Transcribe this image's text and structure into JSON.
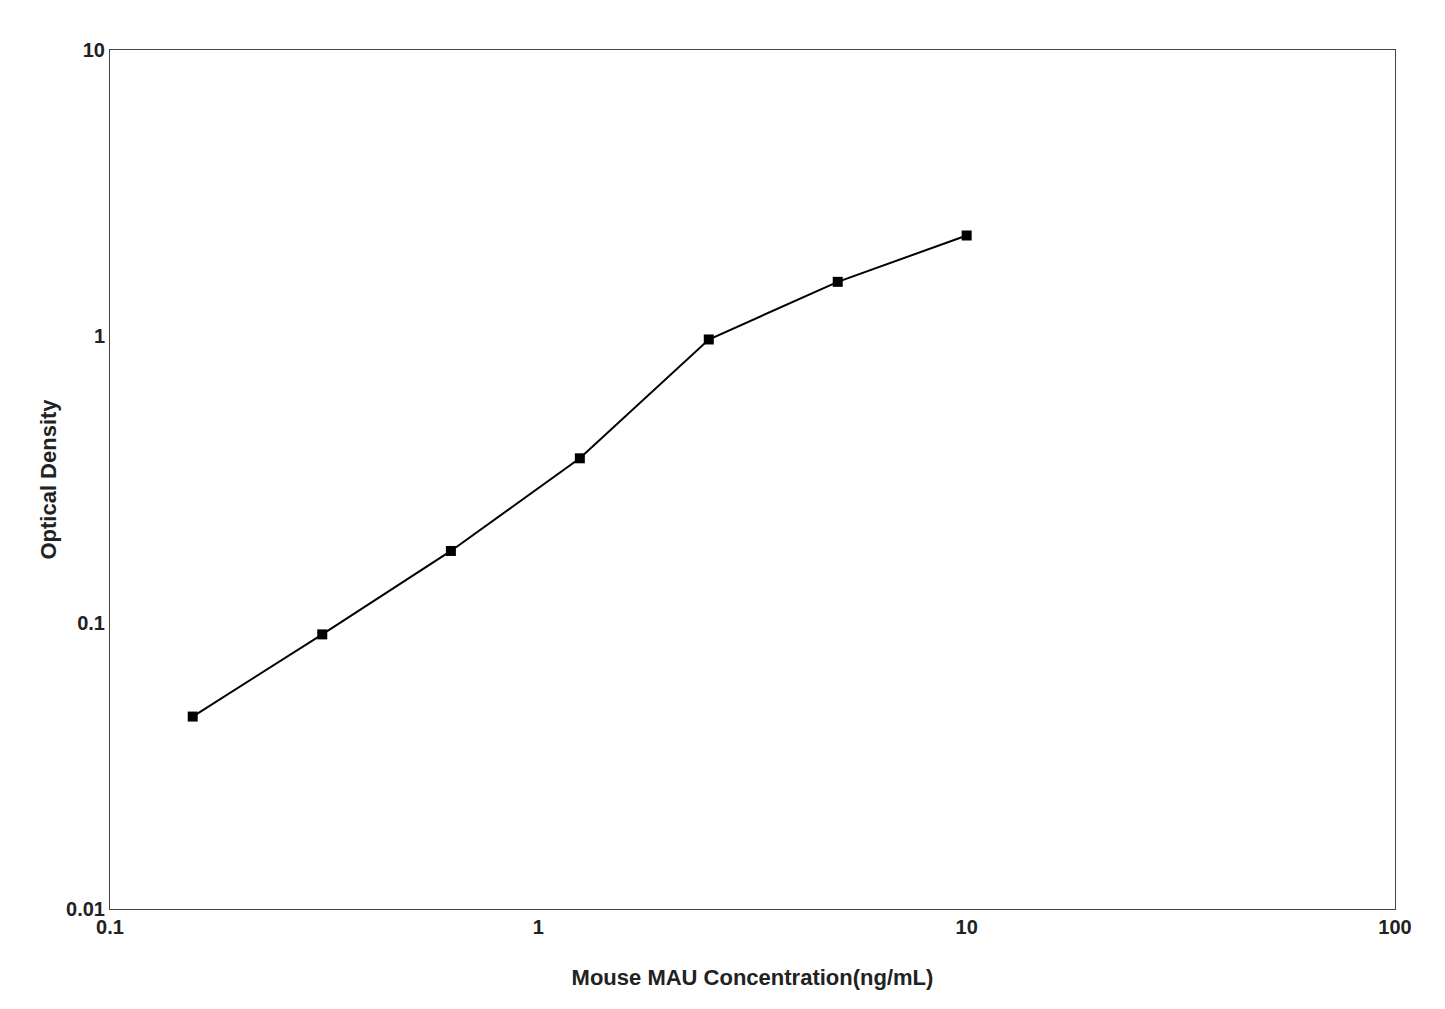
{
  "chart_data": {
    "type": "line",
    "x": [
      0.156,
      0.313,
      0.625,
      1.25,
      2.5,
      5.0,
      10.0
    ],
    "values": [
      0.047,
      0.091,
      0.178,
      0.375,
      0.975,
      1.55,
      2.25
    ],
    "xlabel": "Mouse MAU Concentration(ng/mL)",
    "ylabel": "Optical Density",
    "xlim": [
      0.1,
      100
    ],
    "ylim": [
      0.01,
      10
    ],
    "xticks": [
      0.1,
      1,
      10,
      100
    ],
    "yticks": [
      0.01,
      0.1,
      1,
      10
    ],
    "log": true,
    "grid": false,
    "color": "#000000",
    "marker": "square"
  }
}
